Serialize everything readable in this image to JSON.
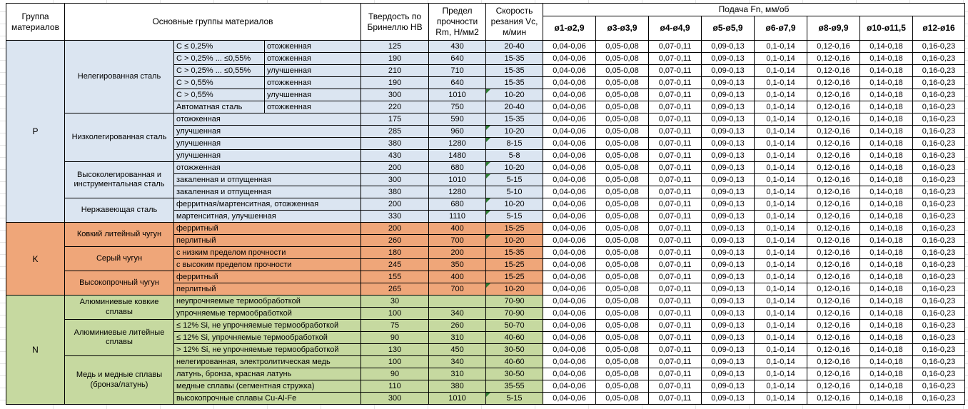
{
  "chart_data": {
    "type": "table",
    "header": {
      "group": "Группа материалов",
      "materials": "Основные группы материалов",
      "hardness": "Твердость по Бринеллю HB",
      "strength": "Предел прочности Rm, Н/мм2",
      "speed": "Скорость резания Vc, м/мин",
      "feed": "Подача Fn, мм/об",
      "feed_diameters": [
        "ø1-ø2,9",
        "ø3-ø3,9",
        "ø4-ø4,9",
        "ø5-ø5,9",
        "ø6-ø7,9",
        "ø8-ø9,9",
        "ø10-ø11,5",
        "ø12-ø16"
      ]
    },
    "feed_values": [
      "0,04-0,06",
      "0,05-0,08",
      "0,07-0,11",
      "0,09-0,13",
      "0,1-0,14",
      "0,12-0,16",
      "0,14-0,18",
      "0,16-0,23"
    ],
    "note_marker_color": "#2e7d32",
    "groups": [
      {
        "letter": "P",
        "bg": "#dbe5f1",
        "subgroups": [
          {
            "name": "Нелегированная сталь",
            "rows": [
              {
                "composition": "С ≤ 0,25%",
                "state": "отожженная",
                "hb": "125",
                "rm": "430",
                "vc": "20-40",
                "note_marker": false
              },
              {
                "composition": "С > 0,25% ... ≤0,55%",
                "state": "отожженная",
                "hb": "190",
                "rm": "640",
                "vc": "15-35",
                "note_marker": false
              },
              {
                "composition": "С > 0,25% ... ≤0,55%",
                "state": "улучшенная",
                "hb": "210",
                "rm": "710",
                "vc": "15-35",
                "note_marker": false
              },
              {
                "composition": "С > 0,55%",
                "state": "отожженная",
                "hb": "190",
                "rm": "640",
                "vc": "15-35",
                "note_marker": false
              },
              {
                "composition": "С > 0,55%",
                "state": "улучшенная",
                "hb": "300",
                "rm": "1010",
                "vc": "10-20",
                "note_marker": true
              },
              {
                "composition": "Автоматная сталь",
                "state": "отожженная",
                "hb": "220",
                "rm": "750",
                "vc": "20-40",
                "note_marker": false
              }
            ]
          },
          {
            "name": "Низколегированная сталь",
            "rows": [
              {
                "description": "отожженная",
                "hb": "175",
                "rm": "590",
                "vc": "15-35",
                "note_marker": false
              },
              {
                "description": "улучшенная",
                "hb": "285",
                "rm": "960",
                "vc": "10-20",
                "note_marker": true
              },
              {
                "description": "улучшенная",
                "hb": "380",
                "rm": "1280",
                "vc": "8-15",
                "note_marker": true
              },
              {
                "description": "улучшенная",
                "hb": "430",
                "rm": "1480",
                "vc": "5-8",
                "note_marker": false
              }
            ]
          },
          {
            "name": "Высоколегированная и инструментальная сталь",
            "rows": [
              {
                "description": "отожженная",
                "hb": "200",
                "rm": "680",
                "vc": "10-20",
                "note_marker": true
              },
              {
                "description": "закаленная и отпущенная",
                "hb": "300",
                "rm": "1010",
                "vc": "5-15",
                "note_marker": true
              },
              {
                "description": "закаленная и отпущенная",
                "hb": "380",
                "rm": "1280",
                "vc": "5-10",
                "note_marker": false
              }
            ]
          },
          {
            "name": "Нержавеющая сталь",
            "rows": [
              {
                "description": "ферритная/мартенситная, отожженная",
                "hb": "200",
                "rm": "680",
                "vc": "10-20",
                "note_marker": true
              },
              {
                "description": "мартенситная, улучшенная",
                "hb": "330",
                "rm": "1110",
                "vc": "5-15",
                "note_marker": true
              }
            ]
          }
        ]
      },
      {
        "letter": "K",
        "bg": "#efa679",
        "subgroups": [
          {
            "name": "Ковкий литейный чугун",
            "rows": [
              {
                "description": "ферритный",
                "hb": "200",
                "rm": "400",
                "vc": "15-25",
                "note_marker": false
              },
              {
                "description": "перлитный",
                "hb": "260",
                "rm": "700",
                "vc": "10-20",
                "note_marker": true
              }
            ]
          },
          {
            "name": "Серый чугун",
            "rows": [
              {
                "description": "с низким пределом прочности",
                "hb": "180",
                "rm": "200",
                "vc": "15-35",
                "note_marker": false
              },
              {
                "description": "с высоким пределом прочности",
                "hb": "245",
                "rm": "350",
                "vc": "15-25",
                "note_marker": false
              }
            ]
          },
          {
            "name": "Высокопрочный чугун",
            "rows": [
              {
                "description": "ферритный",
                "hb": "155",
                "rm": "400",
                "vc": "15-25",
                "note_marker": false
              },
              {
                "description": "перлитный",
                "hb": "265",
                "rm": "700",
                "vc": "10-20",
                "note_marker": true
              }
            ]
          }
        ]
      },
      {
        "letter": "N",
        "bg": "#c6d9a0",
        "subgroups": [
          {
            "name": "Алюминиевые ковкие сплавы",
            "rows": [
              {
                "description": "неупрочняемые термообработкой",
                "hb": "30",
                "rm": "",
                "vc": "70-90",
                "note_marker": false
              },
              {
                "description": "упрочняемые термообработкой",
                "hb": "100",
                "rm": "340",
                "vc": "70-90",
                "note_marker": false
              }
            ]
          },
          {
            "name": "Алюминиевые литейные сплавы",
            "rows": [
              {
                "description": "≤ 12% Si, не упрочняемые термообработкой",
                "hb": "75",
                "rm": "260",
                "vc": "50-70",
                "note_marker": false
              },
              {
                "description": "≤ 12% Si, упрочняемые термообработкой",
                "hb": "90",
                "rm": "310",
                "vc": "40-60",
                "note_marker": false
              },
              {
                "description": "> 12% Si, не упрочняемые термообработкой",
                "hb": "130",
                "rm": "450",
                "vc": "30-50",
                "note_marker": false
              }
            ]
          },
          {
            "name": "Медь и медные сплавы (бронза/латунь)",
            "rows": [
              {
                "description": "нелегированная, электролитическая медь",
                "hb": "100",
                "rm": "340",
                "vc": "40-60",
                "note_marker": false
              },
              {
                "description": "латунь, бронза, красная латунь",
                "hb": "90",
                "rm": "310",
                "vc": "30-50",
                "note_marker": false
              },
              {
                "description": "медные сплавы (сегментная стружка)",
                "hb": "110",
                "rm": "380",
                "vc": "35-55",
                "note_marker": false
              },
              {
                "description": "высокопрочные сплавы Cu-Al-Fe",
                "hb": "300",
                "rm": "1010",
                "vc": "5-15",
                "note_marker": true
              }
            ]
          }
        ]
      }
    ]
  }
}
